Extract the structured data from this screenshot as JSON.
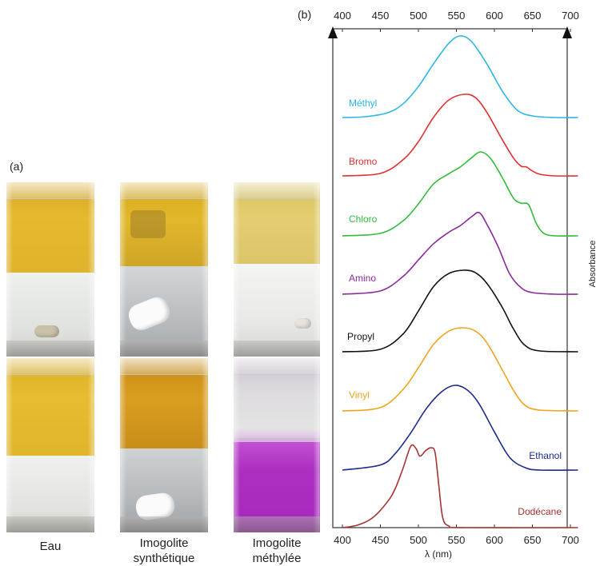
{
  "panel_a": {
    "label": "(a)",
    "captions": {
      "eau": "Eau",
      "synth_1": "Imogolite",
      "synth_2": "synthétique",
      "meth_1": "Imogolite",
      "meth_2": "méthylée"
    },
    "colors": {
      "gold": "#e2b42c",
      "amber": "#d99c1f",
      "pale_yellow": "#e3cf72",
      "magenta": "#b033c4",
      "water": "#e4e6e4"
    }
  },
  "panel_b": {
    "label": "(b)",
    "ylabel": "Absorbance",
    "chart_data": {
      "type": "line",
      "x_ticks_top": [
        "400",
        "450",
        "500",
        "550",
        "600",
        "650",
        "700"
      ],
      "x_ticks_bottom": [
        "400",
        "450",
        "500",
        "550",
        "600",
        "650",
        "700"
      ],
      "xlabel": "λ (nm)",
      "ylabel": "Absorbance",
      "xlim": [
        400,
        710
      ],
      "grid": false,
      "series": [
        {
          "name": "Méthyl",
          "color": "#2bb7e6",
          "x": [
            400,
            430,
            460,
            480,
            500,
            520,
            540,
            555,
            570,
            590,
            610,
            630,
            650,
            680,
            710
          ],
          "y": [
            0,
            0.01,
            0.06,
            0.17,
            0.38,
            0.66,
            0.91,
            1.0,
            0.93,
            0.66,
            0.33,
            0.09,
            0.02,
            0,
            0
          ]
        },
        {
          "name": "Bromo",
          "color": "#e0302e",
          "x": [
            400,
            450,
            480,
            500,
            520,
            540,
            560,
            575,
            590,
            610,
            625,
            635,
            642,
            650,
            660,
            680,
            710
          ],
          "y": [
            0,
            0.03,
            0.2,
            0.42,
            0.72,
            0.93,
            1.0,
            0.96,
            0.78,
            0.45,
            0.22,
            0.12,
            0.11,
            0.06,
            0.02,
            0,
            0
          ]
        },
        {
          "name": "Chloro",
          "color": "#2fbd3a",
          "x": [
            400,
            450,
            480,
            500,
            520,
            540,
            555,
            570,
            582,
            595,
            610,
            625,
            635,
            645,
            655,
            665,
            680,
            710
          ],
          "y": [
            0,
            0.03,
            0.18,
            0.38,
            0.62,
            0.74,
            0.82,
            0.93,
            1.0,
            0.92,
            0.7,
            0.45,
            0.39,
            0.37,
            0.15,
            0.03,
            0,
            0
          ]
        },
        {
          "name": "Amino",
          "color": "#8a2a9c",
          "x": [
            400,
            450,
            480,
            500,
            520,
            540,
            555,
            570,
            580,
            590,
            605,
            620,
            635,
            650,
            680,
            710
          ],
          "y": [
            0,
            0.04,
            0.22,
            0.42,
            0.62,
            0.76,
            0.84,
            0.95,
            1.0,
            0.86,
            0.58,
            0.25,
            0.08,
            0.02,
            0,
            0
          ]
        },
        {
          "name": "Propyl",
          "color": "#111111",
          "x": [
            400,
            450,
            480,
            500,
            520,
            540,
            560,
            575,
            590,
            610,
            625,
            640,
            660,
            710
          ],
          "y": [
            0,
            0.03,
            0.22,
            0.5,
            0.8,
            0.96,
            1.0,
            0.97,
            0.84,
            0.55,
            0.28,
            0.08,
            0.01,
            0
          ]
        },
        {
          "name": "Vinyl",
          "color": "#f0a41c",
          "x": [
            400,
            450,
            480,
            500,
            520,
            540,
            558,
            575,
            590,
            610,
            625,
            640,
            660,
            710
          ],
          "y": [
            0,
            0.04,
            0.26,
            0.52,
            0.8,
            0.96,
            1.0,
            0.96,
            0.82,
            0.5,
            0.25,
            0.07,
            0.01,
            0
          ]
        },
        {
          "name": "Ethanol",
          "color": "#1b2a8c",
          "x": [
            400,
            450,
            470,
            490,
            510,
            530,
            548,
            565,
            580,
            600,
            620,
            640,
            660,
            710
          ],
          "y": [
            0,
            0.06,
            0.2,
            0.44,
            0.72,
            0.92,
            1.0,
            0.94,
            0.78,
            0.45,
            0.15,
            0.03,
            0,
            0
          ]
        },
        {
          "name": "Dodécane",
          "color": "#a83232",
          "x": [
            400,
            420,
            440,
            460,
            470,
            480,
            490,
            497,
            502,
            510,
            517,
            522,
            527,
            532,
            540,
            560,
            710
          ],
          "y": [
            0,
            0.03,
            0.12,
            0.32,
            0.48,
            0.72,
            0.98,
            0.95,
            0.86,
            0.93,
            0.96,
            0.9,
            0.5,
            0.12,
            0.02,
            0,
            0
          ]
        }
      ]
    }
  }
}
